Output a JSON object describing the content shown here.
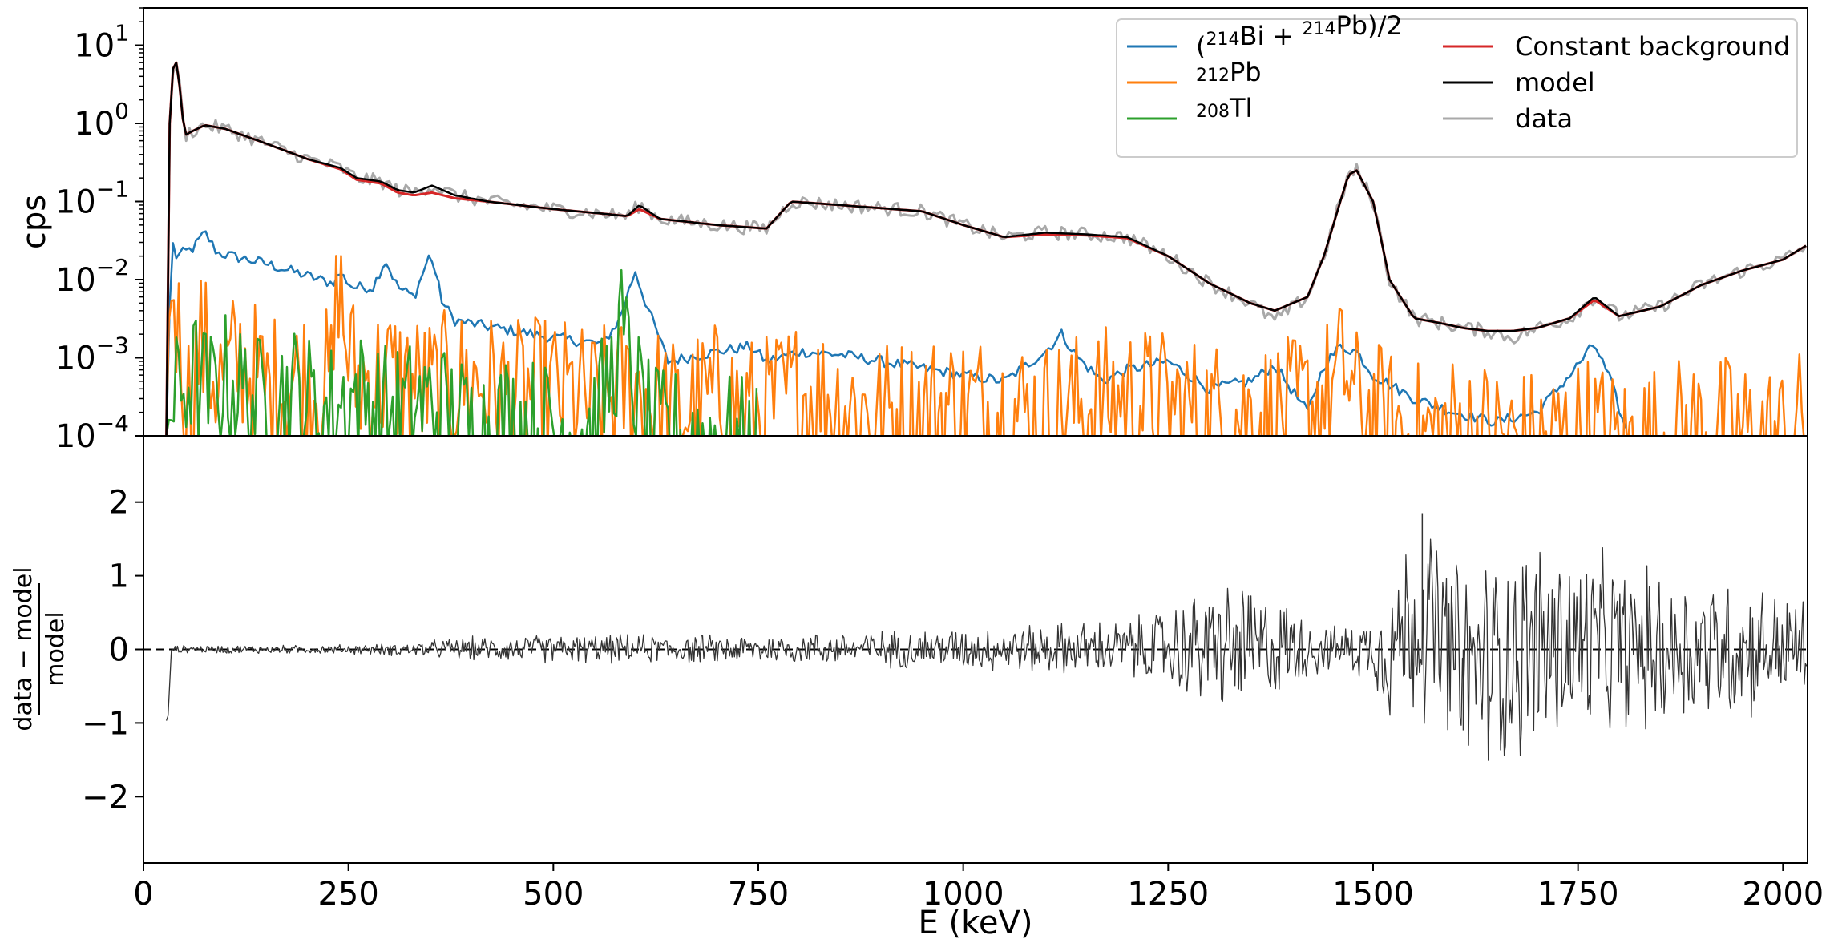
{
  "chart_data": [
    {
      "type": "line",
      "panel": "top",
      "ylabel": "cps",
      "yscale": "log",
      "ylim": [
        0.0001,
        30
      ],
      "xlim": [
        0,
        2030
      ],
      "ytick_labels": [
        {
          "value": 10,
          "base": "10",
          "exp": "1"
        },
        {
          "value": 1,
          "base": "10",
          "exp": "0"
        },
        {
          "value": 0.1,
          "base": "10",
          "exp": "−1"
        },
        {
          "value": 0.01,
          "base": "10",
          "exp": "−2"
        },
        {
          "value": 0.001,
          "base": "10",
          "exp": "−3"
        },
        {
          "value": 0.0001,
          "base": "10",
          "exp": "−4"
        }
      ],
      "legend_placement": "top-right",
      "legend": [
        {
          "key": "bi214",
          "color": "#1f77b4",
          "parts": [
            {
              "t": "("
            },
            {
              "t": "214",
              "sup": true
            },
            {
              "t": "Bi + "
            },
            {
              "t": "214",
              "sup": true
            },
            {
              "t": "Pb)/2"
            }
          ]
        },
        {
          "key": "pb212",
          "color": "#ff7f0e",
          "parts": [
            {
              "t": "212",
              "sup": true
            },
            {
              "t": "Pb"
            }
          ]
        },
        {
          "key": "tl208",
          "color": "#2ca02c",
          "parts": [
            {
              "t": "208",
              "sup": true
            },
            {
              "t": "Tl"
            }
          ]
        },
        {
          "key": "const",
          "color": "#d62728",
          "parts": [
            {
              "t": "Constant background"
            }
          ]
        },
        {
          "key": "model",
          "color": "#000000",
          "parts": [
            {
              "t": "model"
            }
          ]
        },
        {
          "key": "data",
          "color": "#a9a9a9",
          "parts": [
            {
              "t": "data"
            }
          ]
        }
      ],
      "series": [
        {
          "name": "data",
          "color": "#a9a9a9",
          "x": [
            28,
            32,
            36,
            40,
            44,
            50,
            60,
            75,
            100,
            150,
            200,
            240,
            260,
            290,
            310,
            330,
            352,
            380,
            420,
            500,
            560,
            590,
            605,
            630,
            700,
            760,
            790,
            850,
            950,
            1000,
            1050,
            1100,
            1150,
            1200,
            1250,
            1300,
            1350,
            1380,
            1420,
            1440,
            1460,
            1470,
            1480,
            1500,
            1520,
            1550,
            1580,
            1610,
            1640,
            1670,
            1700,
            1740,
            1770,
            1800,
            1850,
            1900,
            1950,
            2000,
            2030
          ],
          "y": [
            0.0001,
            1,
            5,
            6,
            3,
            0.7,
            0.8,
            0.95,
            0.85,
            0.55,
            0.35,
            0.27,
            0.2,
            0.18,
            0.14,
            0.13,
            0.16,
            0.12,
            0.1,
            0.08,
            0.07,
            0.065,
            0.09,
            0.06,
            0.05,
            0.045,
            0.1,
            0.09,
            0.075,
            0.05,
            0.035,
            0.04,
            0.038,
            0.035,
            0.02,
            0.009,
            0.005,
            0.003,
            0.006,
            0.02,
            0.1,
            0.22,
            0.25,
            0.1,
            0.01,
            0.0032,
            0.0028,
            0.0024,
            0.0022,
            0.0018,
            0.0024,
            0.0032,
            0.006,
            0.0034,
            0.0045,
            0.0085,
            0.013,
            0.018,
            0.028
          ]
        },
        {
          "name": "model",
          "color": "#000000",
          "x": [
            28,
            32,
            36,
            40,
            44,
            50,
            60,
            75,
            100,
            150,
            200,
            240,
            260,
            290,
            310,
            330,
            352,
            380,
            420,
            500,
            560,
            590,
            605,
            630,
            700,
            760,
            790,
            850,
            950,
            1000,
            1050,
            1100,
            1150,
            1200,
            1250,
            1300,
            1350,
            1380,
            1420,
            1440,
            1460,
            1470,
            1480,
            1500,
            1520,
            1550,
            1580,
            1610,
            1640,
            1670,
            1700,
            1740,
            1770,
            1800,
            1850,
            1900,
            1950,
            2000,
            2030
          ],
          "y": [
            0.0001,
            1,
            5,
            6,
            3,
            0.7,
            0.8,
            0.95,
            0.85,
            0.55,
            0.35,
            0.27,
            0.2,
            0.18,
            0.14,
            0.13,
            0.16,
            0.12,
            0.1,
            0.08,
            0.07,
            0.065,
            0.09,
            0.06,
            0.05,
            0.045,
            0.1,
            0.09,
            0.075,
            0.05,
            0.035,
            0.04,
            0.038,
            0.035,
            0.02,
            0.009,
            0.005,
            0.004,
            0.006,
            0.02,
            0.1,
            0.22,
            0.25,
            0.1,
            0.01,
            0.0032,
            0.0028,
            0.0024,
            0.0022,
            0.0022,
            0.0024,
            0.0032,
            0.006,
            0.0034,
            0.0045,
            0.0085,
            0.013,
            0.018,
            0.028
          ]
        },
        {
          "name": "Constant background",
          "color": "#d62728",
          "x": [
            28,
            32,
            36,
            40,
            44,
            50,
            60,
            75,
            100,
            150,
            200,
            240,
            260,
            290,
            310,
            330,
            352,
            380,
            420,
            500,
            560,
            590,
            605,
            630,
            700,
            760,
            790,
            850,
            950,
            1000,
            1050,
            1100,
            1150,
            1200,
            1250,
            1300,
            1350,
            1380,
            1420,
            1440,
            1460,
            1470,
            1480,
            1500,
            1520,
            1550,
            1580,
            1610,
            1640,
            1670,
            1700,
            1740,
            1770,
            1800,
            1850,
            1900,
            1950,
            2000,
            2030
          ],
          "y": [
            0.0001,
            1,
            5,
            6,
            3,
            0.7,
            0.8,
            0.95,
            0.85,
            0.55,
            0.35,
            0.26,
            0.19,
            0.17,
            0.13,
            0.12,
            0.13,
            0.11,
            0.1,
            0.08,
            0.07,
            0.065,
            0.08,
            0.06,
            0.05,
            0.045,
            0.1,
            0.09,
            0.075,
            0.05,
            0.035,
            0.038,
            0.037,
            0.034,
            0.02,
            0.009,
            0.005,
            0.004,
            0.006,
            0.02,
            0.1,
            0.22,
            0.25,
            0.1,
            0.01,
            0.0032,
            0.0028,
            0.0024,
            0.0022,
            0.0022,
            0.0024,
            0.0032,
            0.0055,
            0.0034,
            0.0045,
            0.0085,
            0.013,
            0.018,
            0.028
          ]
        },
        {
          "name": "(214Bi + 214Pb)/2",
          "color": "#1f77b4",
          "x": [
            28,
            34,
            40,
            60,
            75,
            90,
            150,
            230,
            240,
            255,
            280,
            295,
            310,
            330,
            350,
            365,
            380,
            420,
            500,
            560,
            580,
            600,
            610,
            640,
            700,
            740,
            760,
            800,
            850,
            900,
            1000,
            1050,
            1100,
            1120,
            1140,
            1170,
            1200,
            1250,
            1300,
            1350,
            1380,
            1420,
            1440,
            1460,
            1480,
            1500,
            1550,
            1600,
            1650,
            1700,
            1740,
            1770,
            1790,
            1810
          ],
          "y": [
            0.0001,
            0.033,
            0.02,
            0.025,
            0.04,
            0.022,
            0.016,
            0.009,
            0.012,
            0.008,
            0.008,
            0.018,
            0.008,
            0.006,
            0.022,
            0.005,
            0.003,
            0.0025,
            0.0018,
            0.0015,
            0.003,
            0.013,
            0.006,
            0.0009,
            0.0012,
            0.0014,
            0.0009,
            0.0012,
            0.0011,
            0.0009,
            0.0006,
            0.0005,
            0.0012,
            0.002,
            0.001,
            0.0005,
            0.0007,
            0.0009,
            0.0004,
            0.0005,
            0.0008,
            0.0002,
            0.0008,
            0.0014,
            0.0012,
            0.0006,
            0.0003,
            0.0002,
            0.00015,
            0.0002,
            0.0006,
            0.0015,
            0.0005,
            0.0001
          ]
        },
        {
          "name": "212Pb",
          "color": "#ff7f0e",
          "x": [
            28,
            33,
            37,
            45,
            55,
            70,
            90,
            120,
            150,
            200,
            230,
            238,
            245,
            260,
            300,
            350,
            400,
            450,
            500,
            550,
            600,
            650,
            700,
            750,
            800,
            900,
            1000,
            1100,
            1200,
            1300,
            1400,
            1450,
            1465,
            1480,
            1500,
            1550,
            1600,
            1700,
            1760,
            1800,
            1900,
            2000,
            2030
          ],
          "y": [
            0.0001,
            0.028,
            0.01,
            0.002,
            0.0005,
            0.0025,
            0.0008,
            0.0015,
            0.0006,
            0.0009,
            0.0007,
            0.02,
            0.003,
            0.0008,
            0.0009,
            0.0006,
            0.0008,
            0.0005,
            0.0006,
            0.0004,
            0.0007,
            0.0003,
            0.0005,
            0.0003,
            0.0006,
            0.0003,
            0.0004,
            0.0003,
            0.0005,
            0.0003,
            0.0003,
            0.0006,
            0.0012,
            0.0004,
            0.0003,
            0.00015,
            0.0002,
            0.00012,
            0.0002,
            0.00012,
            0.0002,
            0.00015,
            0.00025
          ]
        },
        {
          "name": "208Tl",
          "color": "#2ca02c",
          "x": [
            28,
            35,
            45,
            60,
            80,
            100,
            140,
            180,
            220,
            260,
            300,
            350,
            400,
            450,
            500,
            550,
            570,
            583,
            595,
            620,
            700,
            750
          ],
          "y": [
            0.0001,
            0.0003,
            0.0006,
            0.0009,
            0.0005,
            0.0008,
            0.0004,
            0.0006,
            0.0003,
            0.0005,
            0.0003,
            0.0004,
            0.0002,
            0.00025,
            0.00018,
            0.0002,
            0.0008,
            0.0035,
            0.0009,
            0.00015,
            0.00015,
            0.0001
          ]
        }
      ]
    },
    {
      "type": "line",
      "panel": "bottom",
      "xlabel": "E (keV)",
      "ylabel_numerator": "data − model",
      "ylabel_denominator": "model",
      "xlim": [
        0,
        2030
      ],
      "ylim": [
        -2.9,
        2.9
      ],
      "xticks": [
        0,
        250,
        500,
        750,
        1000,
        1250,
        1500,
        1750,
        2000
      ],
      "yticks": [
        -2,
        -1,
        0,
        1,
        2
      ],
      "ytick_labels": [
        "−2",
        "−1",
        "0",
        "1",
        "2"
      ],
      "reference_line": {
        "y": 0,
        "style": "dashed",
        "color": "#000000"
      },
      "noise_envelope": {
        "energy": [
          28,
          100,
          200,
          300,
          400,
          500,
          600,
          700,
          800,
          900,
          1000,
          1100,
          1200,
          1250,
          1300,
          1350,
          1400,
          1450,
          1500,
          1520,
          1550,
          1600,
          1650,
          1700,
          1750,
          1800,
          1850,
          1900,
          1950,
          2000,
          2030
        ],
        "amplitude": [
          0.04,
          0.05,
          0.05,
          0.07,
          0.14,
          0.17,
          0.17,
          0.17,
          0.18,
          0.22,
          0.25,
          0.3,
          0.35,
          0.5,
          0.75,
          0.8,
          0.5,
          0.25,
          0.4,
          0.9,
          1.2,
          1.2,
          1.3,
          1.3,
          1.2,
          1.0,
          0.95,
          0.9,
          0.85,
          0.65,
          0.65
        ]
      },
      "series": [
        {
          "name": "residual",
          "color": "#333333",
          "x": [
            28,
            30,
            35,
            50,
            150,
            250,
            300,
            400,
            500,
            600,
            700,
            800,
            900,
            1000,
            1100,
            1200,
            1300,
            1360,
            1400,
            1450,
            1500,
            1520,
            1560,
            1610,
            1700,
            1780,
            1850,
            1900,
            2000,
            2030
          ],
          "y": [
            -0.97,
            -0.95,
            0.0,
            0.02,
            -0.01,
            0.0,
            -0.02,
            0.05,
            0.02,
            0.03,
            0.0,
            0.05,
            0.03,
            0.05,
            0.05,
            0.06,
            0.1,
            -0.1,
            0.2,
            0.03,
            0.05,
            0.1,
            1.85,
            -1.1,
            0.2,
            0.1,
            0.0,
            0.05,
            0.05,
            0.1
          ]
        }
      ]
    }
  ]
}
